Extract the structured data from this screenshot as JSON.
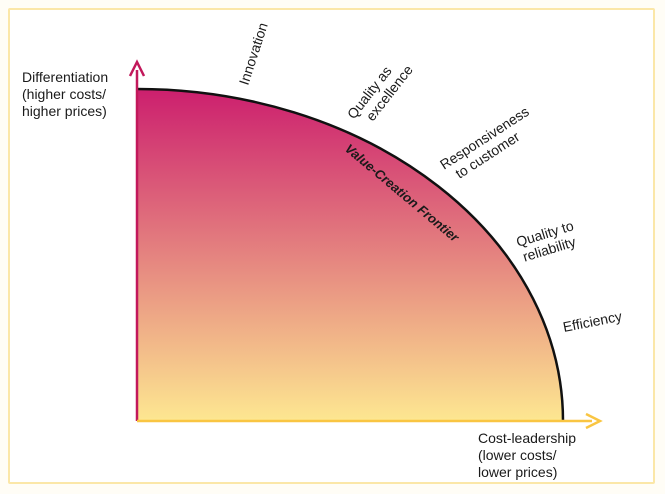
{
  "y_axis_label": "Differentiation\n(higher costs/\nhigher prices)",
  "x_axis_label": "Cost-leadership\n(lower costs/\nlower prices)",
  "frontier_label": "Value-Creation Frontier",
  "segments": [
    {
      "lines": [
        "Innovation"
      ]
    },
    {
      "lines": [
        "Quality as",
        "excellence"
      ]
    },
    {
      "lines": [
        "Responsiveness",
        "to customer"
      ]
    },
    {
      "lines": [
        "Quality to",
        "reliability"
      ]
    },
    {
      "lines": [
        "Efficiency"
      ]
    }
  ],
  "colors": {
    "fill_top": "#cc1f6e",
    "fill_bottom": "#fde791",
    "y_axis": "#c2185b",
    "x_axis": "#f9c542",
    "frontier": "#111111"
  }
}
